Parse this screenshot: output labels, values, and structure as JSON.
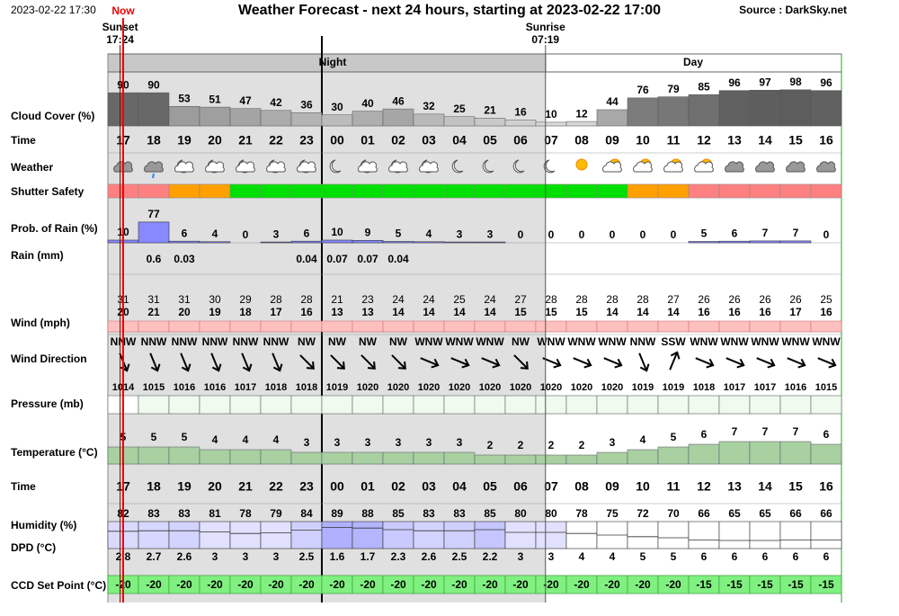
{
  "header": {
    "timestamp": "2023-02-22 17:30",
    "now": "Now",
    "title": "Weather Forecast - next 24 hours, starting at 2023-02-22 17:00",
    "source": "Source : DarkSky.net"
  },
  "sun": {
    "sunset_label": "Sunset",
    "sunset_time": "17:24",
    "sunrise_label": "Sunrise",
    "sunrise_time": "07:19"
  },
  "periods": {
    "night": "Night",
    "day": "Day"
  },
  "labels": {
    "cloud": "Cloud Cover (%)",
    "time": "Time",
    "weather": "Weather",
    "shutter": "Shutter Safety",
    "rain_prob": "Prob. of Rain (%)",
    "rain": "Rain (mm)",
    "wind": "Wind (mph)",
    "wind_dir": "Wind Direction",
    "pressure": "Pressure (mb)",
    "temperature": "Temperature (°C)",
    "time2": "Time",
    "humidity": "Humidity (%)",
    "dpd": "DPD (°C)",
    "ccd": "CCD Set Point (°C)"
  },
  "hours": [
    "17",
    "18",
    "19",
    "20",
    "21",
    "22",
    "23",
    "00",
    "01",
    "02",
    "03",
    "04",
    "05",
    "06",
    "07",
    "08",
    "09",
    "10",
    "11",
    "12",
    "13",
    "14",
    "15",
    "16"
  ],
  "cloud_cover": [
    90,
    90,
    53,
    51,
    47,
    42,
    36,
    30,
    40,
    46,
    32,
    25,
    21,
    16,
    10,
    12,
    44,
    76,
    79,
    85,
    96,
    97,
    98,
    96
  ],
  "rain_prob": [
    10,
    77,
    6,
    4,
    0,
    3,
    6,
    10,
    9,
    5,
    4,
    3,
    3,
    0,
    0,
    0,
    0,
    0,
    0,
    5,
    6,
    7,
    7,
    0
  ],
  "rain_mm": [
    null,
    0.6,
    0.03,
    null,
    null,
    null,
    0.04,
    0.07,
    0.07,
    0.04,
    null,
    null,
    null,
    null,
    null,
    null,
    null,
    null,
    null,
    null,
    null,
    null,
    null,
    null
  ],
  "wind_gust": [
    31,
    31,
    31,
    30,
    29,
    28,
    28,
    21,
    23,
    24,
    24,
    25,
    24,
    27,
    28,
    28,
    28,
    28,
    27,
    26,
    26,
    26,
    26,
    25
  ],
  "wind_speed": [
    20,
    21,
    20,
    19,
    18,
    17,
    16,
    13,
    13,
    14,
    14,
    14,
    14,
    15,
    15,
    15,
    14,
    14,
    14,
    16,
    16,
    16,
    17,
    16
  ],
  "wind_dir": [
    "NNW",
    "NNW",
    "NNW",
    "NNW",
    "NNW",
    "NNW",
    "NW",
    "NW",
    "NW",
    "NW",
    "WNW",
    "WNW",
    "WNW",
    "NW",
    "WNW",
    "WNW",
    "WNW",
    "NNW",
    "SSW",
    "WNW",
    "WNW",
    "WNW",
    "WNW",
    "WNW"
  ],
  "pressure": [
    1014,
    1015,
    1016,
    1016,
    1017,
    1018,
    1018,
    1019,
    1020,
    1020,
    1020,
    1020,
    1020,
    1020,
    1020,
    1020,
    1020,
    1019,
    1019,
    1018,
    1017,
    1017,
    1016,
    1015
  ],
  "temperature": [
    5,
    5,
    5,
    4,
    4,
    4,
    3,
    3,
    3,
    3,
    3,
    3,
    2,
    2,
    2,
    2,
    3,
    4,
    5,
    6,
    7,
    7,
    7,
    6
  ],
  "humidity": [
    82,
    83,
    83,
    81,
    78,
    79,
    84,
    89,
    88,
    85,
    83,
    83,
    85,
    80,
    80,
    78,
    75,
    72,
    70,
    66,
    65,
    65,
    66,
    66
  ],
  "dpd": [
    2.8,
    2.7,
    2.6,
    3,
    3,
    3,
    2.5,
    1.6,
    1.7,
    2.3,
    2.6,
    2.5,
    2.2,
    3,
    3,
    4,
    4,
    5,
    5,
    6,
    6,
    6,
    6,
    6
  ],
  "ccd": [
    -20,
    -20,
    -20,
    -20,
    -20,
    -20,
    -20,
    -20,
    -20,
    -20,
    -20,
    -20,
    -20,
    -20,
    -20,
    -20,
    -20,
    -20,
    -20,
    -15,
    -15,
    -15,
    -15,
    -15
  ]
}
